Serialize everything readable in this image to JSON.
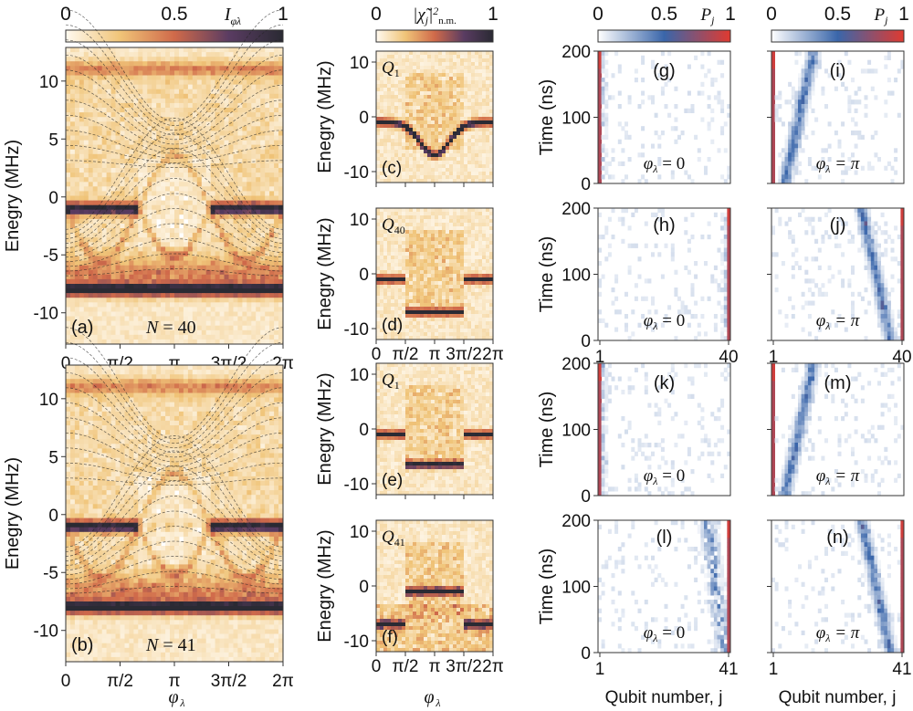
{
  "colorbars": [
    {
      "label": "I_φλ",
      "ticks": [
        "0",
        "0.5",
        "1"
      ],
      "cmap": [
        "#fffaf0",
        "#f0c478",
        "#d06a4a",
        "#5a3c62",
        "#2a2a33"
      ]
    },
    {
      "label": "|χ̃j|²n.m.",
      "ticks": [
        "0",
        "1"
      ],
      "cmap": [
        "#fffaf0",
        "#f0c478",
        "#d06a4a",
        "#5a3c62",
        "#2a2a33"
      ]
    },
    {
      "label": "Pj",
      "ticks": [
        "0",
        "0.5",
        "1"
      ],
      "cmap": [
        "#ffffff",
        "#3a66aa",
        "#e03a30"
      ]
    },
    {
      "label": "Pj",
      "ticks": [
        "0",
        "0.5",
        "1"
      ],
      "cmap": [
        "#ffffff",
        "#3a66aa",
        "#e03a30"
      ]
    }
  ],
  "chart_data": [
    {
      "type": "heatmap",
      "panel": "(a)",
      "annotation": "N = 40",
      "ylabel": "Energy (MHz)",
      "ylim": [
        -12.7,
        12.9
      ],
      "yticks": [
        "10",
        "5",
        "0",
        "-5",
        "-10"
      ],
      "xticks": [
        "0",
        "π/2",
        "π",
        "3π/2",
        "2π"
      ],
      "xlim": [
        0,
        6.283
      ],
      "bands_MHz": [
        11,
        -1,
        -8
      ]
    },
    {
      "type": "heatmap",
      "panel": "(b)",
      "annotation": "N = 41",
      "ylabel": "Energy (MHz)",
      "xlabel": "φλ",
      "ylim": [
        -12.7,
        12.9
      ],
      "yticks": [
        "10",
        "5",
        "0",
        "-5",
        "-10"
      ],
      "xticks": [
        "0",
        "π/2",
        "π",
        "3π/2",
        "2π"
      ],
      "xlim": [
        0,
        6.283
      ],
      "bands_MHz": [
        11,
        -1,
        -8
      ]
    },
    {
      "type": "heatmap",
      "panel": "(c)",
      "qubit": "Q1",
      "ylabel": "Energy (MHz)",
      "ylim": [
        -12,
        12
      ],
      "yticks": [
        "10",
        "0",
        "-10"
      ]
    },
    {
      "type": "heatmap",
      "panel": "(d)",
      "qubit": "Q40",
      "ylabel": "Energy (MHz)",
      "ylim": [
        -12,
        12
      ],
      "yticks": [
        "10",
        "0",
        "-10"
      ],
      "xticks": [
        "0",
        "π/2",
        "π",
        "3π/2",
        "2π"
      ]
    },
    {
      "type": "heatmap",
      "panel": "(e)",
      "qubit": "Q1",
      "ylabel": "Energy (MHz)",
      "ylim": [
        -12,
        12
      ],
      "yticks": [
        "10",
        "0",
        "-10"
      ]
    },
    {
      "type": "heatmap",
      "panel": "(f)",
      "qubit": "Q41",
      "ylabel": "Energy (MHz)",
      "xlabel": "φλ",
      "ylim": [
        -12,
        12
      ],
      "yticks": [
        "10",
        "0",
        "-10"
      ],
      "xticks": [
        "0",
        "π/2",
        "π",
        "3π/2",
        "2π"
      ]
    },
    {
      "type": "heatmap",
      "panel": "(g)",
      "phase": "φλ = 0",
      "ylabel": "Time (ns)",
      "yticks": [
        "200",
        "100",
        "0"
      ],
      "ylim": [
        0,
        200
      ],
      "excitation": "left"
    },
    {
      "type": "heatmap",
      "panel": "(i)",
      "phase": "φλ = π",
      "yticks": [],
      "ylim": [
        0,
        200
      ],
      "excitation": "left"
    },
    {
      "type": "heatmap",
      "panel": "(h)",
      "phase": "φλ = 0",
      "ylabel": "Time (ns)",
      "yticks": [
        "200",
        "100",
        "0"
      ],
      "xticks": [
        "1",
        "40"
      ],
      "ylim": [
        0,
        200
      ],
      "excitation": "right"
    },
    {
      "type": "heatmap",
      "panel": "(j)",
      "phase": "φλ = π",
      "xticks": [
        "1",
        "40"
      ],
      "ylim": [
        0,
        200
      ],
      "excitation": "right"
    },
    {
      "type": "heatmap",
      "panel": "(k)",
      "phase": "φλ = 0",
      "ylabel": "Time (ns)",
      "yticks": [
        "200",
        "100",
        "0"
      ],
      "ylim": [
        0,
        200
      ],
      "excitation": "left"
    },
    {
      "type": "heatmap",
      "panel": "(m)",
      "phase": "φλ = π",
      "ylim": [
        0,
        200
      ],
      "excitation": "left"
    },
    {
      "type": "heatmap",
      "panel": "(l)",
      "phase": "φλ = 0",
      "ylabel": "Time (ns)",
      "yticks": [
        "200",
        "100",
        "0"
      ],
      "xticks": [
        "1",
        "41"
      ],
      "xlabel": "Qubit number, j",
      "ylim": [
        0,
        200
      ],
      "excitation": "right"
    },
    {
      "type": "heatmap",
      "panel": "(n)",
      "phase": "φλ = π",
      "xticks": [
        "1",
        "41"
      ],
      "xlabel": "Qubit number, j",
      "ylim": [
        0,
        200
      ],
      "excitation": "right"
    }
  ]
}
